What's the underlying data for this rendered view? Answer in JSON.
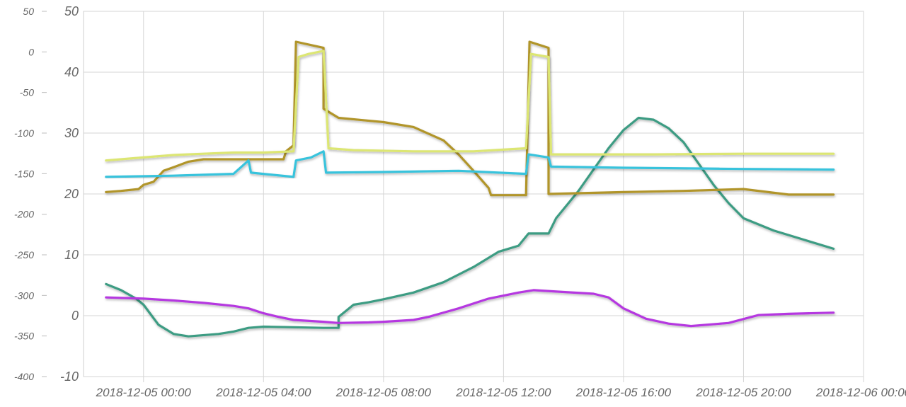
{
  "chart_data": {
    "type": "line",
    "title": "",
    "grid": true,
    "legend": "none",
    "x_axis": {
      "type": "datetime",
      "range": [
        "2018-12-04 22:00",
        "2018-12-06 00:00"
      ],
      "ticks": [
        "2018-12-05 00:00",
        "2018-12-05 04:00",
        "2018-12-05 08:00",
        "2018-12-05 12:00",
        "2018-12-05 16:00",
        "2018-12-05 20:00",
        "2018-12-06 00:00"
      ]
    },
    "y_axis_left": {
      "range": [
        -400,
        50
      ],
      "ticks": [
        "50",
        "0",
        "-50",
        "-100",
        "-150",
        "-200",
        "-250",
        "-300",
        "-350",
        "-400"
      ]
    },
    "y_axis_right": {
      "range": [
        -10,
        50
      ],
      "ticks": [
        "50",
        "40",
        "30",
        "20",
        "10",
        "0",
        "-10"
      ]
    },
    "series": [
      {
        "axis": "right",
        "color": "#3d9c83",
        "points": [
          [
            "2018-12-04 22:45",
            5.2
          ],
          [
            "2018-12-04 23:15",
            4.2
          ],
          [
            "2018-12-04 23:45",
            2.8
          ],
          [
            "2018-12-05 00:00",
            1.8
          ],
          [
            "2018-12-05 00:30",
            -1.5
          ],
          [
            "2018-12-05 01:00",
            -3.0
          ],
          [
            "2018-12-05 01:30",
            -3.4
          ],
          [
            "2018-12-05 02:30",
            -3.0
          ],
          [
            "2018-12-05 03:00",
            -2.6
          ],
          [
            "2018-12-05 03:30",
            -2.0
          ],
          [
            "2018-12-05 04:00",
            -1.8
          ],
          [
            "2018-12-05 05:00",
            -1.9
          ],
          [
            "2018-12-05 06:00",
            -2.0
          ],
          [
            "2018-12-05 06:30",
            -2.0
          ],
          [
            "2018-12-05 06:30",
            -0.2
          ],
          [
            "2018-12-05 07:00",
            1.8
          ],
          [
            "2018-12-05 07:30",
            2.2
          ],
          [
            "2018-12-05 08:00",
            2.7
          ],
          [
            "2018-12-05 09:00",
            3.8
          ],
          [
            "2018-12-05 10:00",
            5.5
          ],
          [
            "2018-12-05 11:00",
            8.0
          ],
          [
            "2018-12-05 11:50",
            10.5
          ],
          [
            "2018-12-05 12:30",
            11.5
          ],
          [
            "2018-12-05 12:50",
            13.5
          ],
          [
            "2018-12-05 13:30",
            13.5
          ],
          [
            "2018-12-05 13:45",
            16.0
          ],
          [
            "2018-12-05 14:30",
            20.5
          ],
          [
            "2018-12-05 15:00",
            24.0
          ],
          [
            "2018-12-05 15:30",
            27.5
          ],
          [
            "2018-12-05 16:00",
            30.5
          ],
          [
            "2018-12-05 16:30",
            32.5
          ],
          [
            "2018-12-05 17:00",
            32.2
          ],
          [
            "2018-12-05 17:30",
            30.8
          ],
          [
            "2018-12-05 18:00",
            28.5
          ],
          [
            "2018-12-05 18:30",
            25.0
          ],
          [
            "2018-12-05 19:00",
            21.5
          ],
          [
            "2018-12-05 19:30",
            18.5
          ],
          [
            "2018-12-05 20:00",
            16.0
          ],
          [
            "2018-12-05 21:00",
            14.0
          ],
          [
            "2018-12-05 22:00",
            12.5
          ],
          [
            "2018-12-05 23:00",
            11.0
          ]
        ]
      },
      {
        "axis": "right",
        "color": "#b1952a",
        "points": [
          [
            "2018-12-04 22:45",
            20.3
          ],
          [
            "2018-12-04 23:15",
            20.5
          ],
          [
            "2018-12-04 23:50",
            20.8
          ],
          [
            "2018-12-05 00:00",
            21.5
          ],
          [
            "2018-12-05 00:20",
            22.0
          ],
          [
            "2018-12-05 00:40",
            23.8
          ],
          [
            "2018-12-05 01:00",
            24.4
          ],
          [
            "2018-12-05 01:30",
            25.3
          ],
          [
            "2018-12-05 02:00",
            25.7
          ],
          [
            "2018-12-05 03:00",
            25.7
          ],
          [
            "2018-12-05 04:00",
            25.7
          ],
          [
            "2018-12-05 04:40",
            25.7
          ],
          [
            "2018-12-05 04:45",
            27.0
          ],
          [
            "2018-12-05 05:00",
            28.0
          ],
          [
            "2018-12-05 05:05",
            45.0
          ],
          [
            "2018-12-05 06:00",
            44.0
          ],
          [
            "2018-12-05 06:00",
            34.0
          ],
          [
            "2018-12-05 06:30",
            32.5
          ],
          [
            "2018-12-05 08:00",
            31.8
          ],
          [
            "2018-12-05 09:00",
            31.0
          ],
          [
            "2018-12-05 10:00",
            28.8
          ],
          [
            "2018-12-05 10:30",
            26.5
          ],
          [
            "2018-12-05 11:00",
            23.8
          ],
          [
            "2018-12-05 11:30",
            21.0
          ],
          [
            "2018-12-05 11:35",
            19.8
          ],
          [
            "2018-12-05 12:45",
            19.8
          ],
          [
            "2018-12-05 12:52",
            45.0
          ],
          [
            "2018-12-05 13:30",
            44.0
          ],
          [
            "2018-12-05 13:30",
            20.0
          ],
          [
            "2018-12-05 16:00",
            20.3
          ],
          [
            "2018-12-05 18:00",
            20.5
          ],
          [
            "2018-12-05 20:00",
            20.8
          ],
          [
            "2018-12-05 21:30",
            19.9
          ],
          [
            "2018-12-05 23:00",
            19.9
          ]
        ]
      },
      {
        "axis": "right",
        "color": "#dce673",
        "points": [
          [
            "2018-12-04 22:45",
            25.5
          ],
          [
            "2018-12-05 00:00",
            26.0
          ],
          [
            "2018-12-05 01:00",
            26.4
          ],
          [
            "2018-12-05 02:00",
            26.6
          ],
          [
            "2018-12-05 03:00",
            26.8
          ],
          [
            "2018-12-05 04:00",
            26.8
          ],
          [
            "2018-12-05 05:00",
            27.0
          ],
          [
            "2018-12-05 05:10",
            42.5
          ],
          [
            "2018-12-05 05:30",
            43.0
          ],
          [
            "2018-12-05 06:00",
            43.5
          ],
          [
            "2018-12-05 06:10",
            27.5
          ],
          [
            "2018-12-05 07:00",
            27.2
          ],
          [
            "2018-12-05 09:00",
            27.0
          ],
          [
            "2018-12-05 11:00",
            27.0
          ],
          [
            "2018-12-05 12:45",
            27.5
          ],
          [
            "2018-12-05 12:55",
            43.0
          ],
          [
            "2018-12-05 13:30",
            42.5
          ],
          [
            "2018-12-05 13:35",
            26.5
          ],
          [
            "2018-12-05 17:00",
            26.5
          ],
          [
            "2018-12-05 20:00",
            26.6
          ],
          [
            "2018-12-05 23:00",
            26.6
          ]
        ]
      },
      {
        "axis": "right",
        "color": "#38c3dc",
        "points": [
          [
            "2018-12-04 22:45",
            22.8
          ],
          [
            "2018-12-05 01:00",
            23.0
          ],
          [
            "2018-12-05 03:00",
            23.3
          ],
          [
            "2018-12-05 03:30",
            25.5
          ],
          [
            "2018-12-05 03:35",
            23.5
          ],
          [
            "2018-12-05 05:00",
            22.8
          ],
          [
            "2018-12-05 05:05",
            25.5
          ],
          [
            "2018-12-05 05:35",
            26.0
          ],
          [
            "2018-12-05 06:00",
            27.0
          ],
          [
            "2018-12-05 06:05",
            23.5
          ],
          [
            "2018-12-05 08:00",
            23.6
          ],
          [
            "2018-12-05 10:30",
            23.8
          ],
          [
            "2018-12-05 12:45",
            23.3
          ],
          [
            "2018-12-05 12:50",
            26.5
          ],
          [
            "2018-12-05 13:30",
            26.0
          ],
          [
            "2018-12-05 13:35",
            24.5
          ],
          [
            "2018-12-05 16:00",
            24.3
          ],
          [
            "2018-12-05 20:00",
            24.1
          ],
          [
            "2018-12-05 23:00",
            24.0
          ]
        ]
      },
      {
        "axis": "right",
        "color": "#b538e0",
        "points": [
          [
            "2018-12-04 22:45",
            3.0
          ],
          [
            "2018-12-05 00:00",
            2.8
          ],
          [
            "2018-12-05 01:00",
            2.5
          ],
          [
            "2018-12-05 02:00",
            2.1
          ],
          [
            "2018-12-05 03:00",
            1.6
          ],
          [
            "2018-12-05 03:30",
            1.2
          ],
          [
            "2018-12-05 04:00",
            0.4
          ],
          [
            "2018-12-05 04:30",
            -0.2
          ],
          [
            "2018-12-05 05:00",
            -0.7
          ],
          [
            "2018-12-05 06:00",
            -1.0
          ],
          [
            "2018-12-05 06:30",
            -1.2
          ],
          [
            "2018-12-05 07:30",
            -1.1
          ],
          [
            "2018-12-05 08:00",
            -1.0
          ],
          [
            "2018-12-05 09:00",
            -0.7
          ],
          [
            "2018-12-05 09:30",
            -0.2
          ],
          [
            "2018-12-05 10:30",
            1.2
          ],
          [
            "2018-12-05 11:30",
            2.8
          ],
          [
            "2018-12-05 12:30",
            3.8
          ],
          [
            "2018-12-05 13:00",
            4.2
          ],
          [
            "2018-12-05 14:00",
            3.9
          ],
          [
            "2018-12-05 15:00",
            3.6
          ],
          [
            "2018-12-05 15:30",
            3.0
          ],
          [
            "2018-12-05 16:00",
            1.2
          ],
          [
            "2018-12-05 16:45",
            -0.5
          ],
          [
            "2018-12-05 17:30",
            -1.3
          ],
          [
            "2018-12-05 18:15",
            -1.7
          ],
          [
            "2018-12-05 19:30",
            -1.2
          ],
          [
            "2018-12-05 20:30",
            0.1
          ],
          [
            "2018-12-05 21:30",
            0.3
          ],
          [
            "2018-12-05 23:00",
            0.5
          ]
        ]
      }
    ]
  }
}
